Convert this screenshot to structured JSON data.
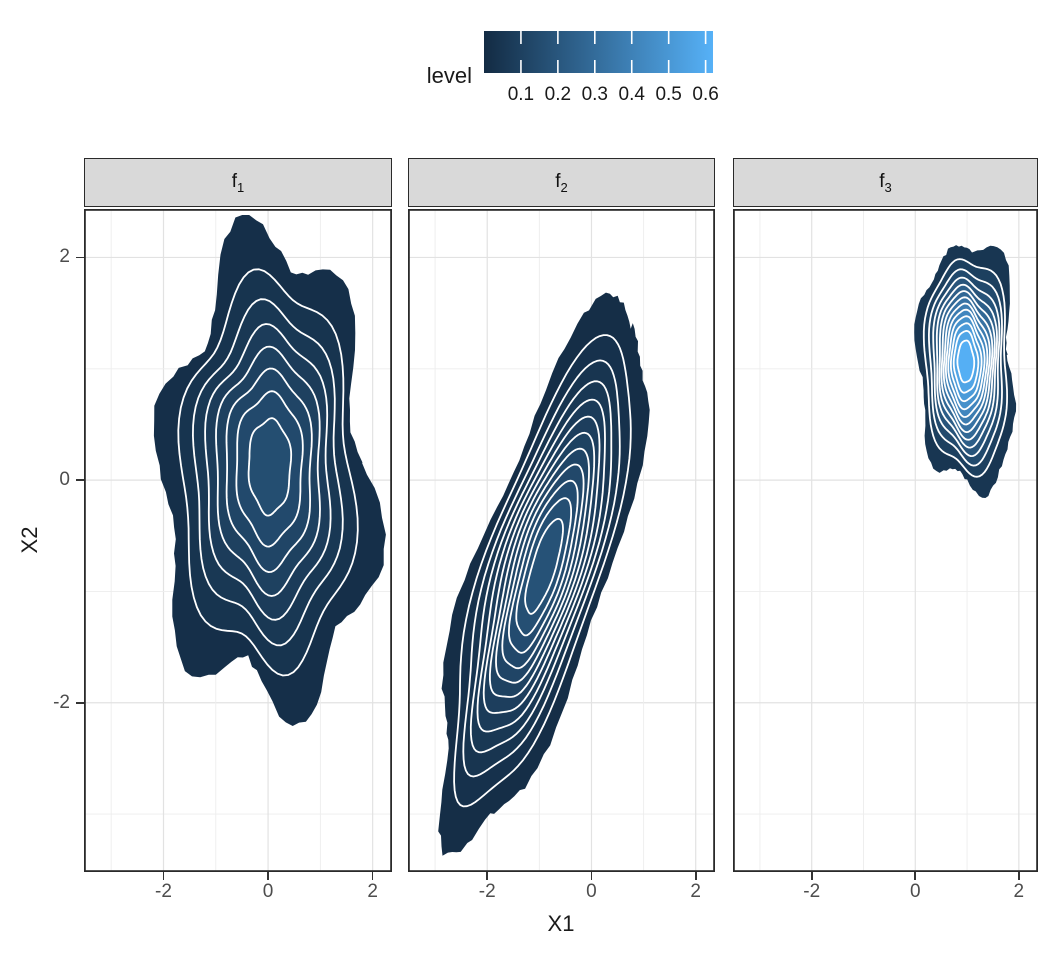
{
  "legend": {
    "title": "level",
    "breaks": [
      0.1,
      0.2,
      0.3,
      0.4,
      0.5,
      0.6
    ],
    "break_labels": [
      "0.1",
      "0.2",
      "0.3",
      "0.4",
      "0.5",
      "0.6"
    ],
    "low_color": "#132B43",
    "high_color": "#56B1F7",
    "scale_max": 0.62
  },
  "axes": {
    "x_title": "X1",
    "y_title": "X2",
    "x_tick_values": [
      -2,
      0,
      2
    ],
    "x_tick_labels": [
      "-2",
      "0",
      "2"
    ],
    "y_tick_values": [
      2,
      0,
      -2
    ],
    "y_tick_labels": [
      "2",
      "0",
      "-2"
    ]
  },
  "chart_data": {
    "type": "filled-contour-density",
    "xlabel": "X1",
    "ylabel": "X2",
    "x_range": [
      -3.5,
      2.4
    ],
    "y_range": [
      -3.5,
      2.4
    ],
    "grid": "major gridlines at even values, minor at odd values, light gray on white panel (theme_bw style)",
    "legend_title": "level",
    "contour_line_color": "#ffffff",
    "facets": [
      {
        "label_base": "f",
        "label_sub": "1",
        "center": [
          0.0,
          0.03
        ],
        "x_extent": [
          -2.05,
          2.0
        ],
        "y_extent": [
          -2.05,
          2.1
        ],
        "radii": [
          2.0,
          2.08
        ],
        "orientation_deg": 4,
        "peak_level": 0.175,
        "contour_levels": [
          0.02,
          0.04,
          0.06,
          0.08,
          0.1,
          0.12,
          0.14,
          0.16
        ]
      },
      {
        "label_base": "f",
        "label_sub": "2",
        "center": [
          -0.95,
          -0.82
        ],
        "x_extent": [
          -3.2,
          1.0
        ],
        "y_extent": [
          -3.25,
          1.4
        ],
        "radii": [
          2.95,
          1.1
        ],
        "orientation_deg": 52,
        "peak_level": 0.195,
        "contour_levels": [
          0.015,
          0.03,
          0.045,
          0.06,
          0.075,
          0.09,
          0.105,
          0.12,
          0.135,
          0.15,
          0.165,
          0.18
        ]
      },
      {
        "label_base": "f",
        "label_sub": "3",
        "center": [
          1.0,
          1.03
        ],
        "x_extent": [
          0.0,
          2.1
        ],
        "y_extent": [
          -0.1,
          2.15
        ],
        "radii": [
          0.94,
          1.13
        ],
        "orientation_deg": 7,
        "peak_level": 0.655,
        "contour_levels": [
          0.05,
          0.097,
          0.143,
          0.19,
          0.237,
          0.283,
          0.33,
          0.377,
          0.423,
          0.47,
          0.517,
          0.563,
          0.61
        ]
      }
    ]
  }
}
